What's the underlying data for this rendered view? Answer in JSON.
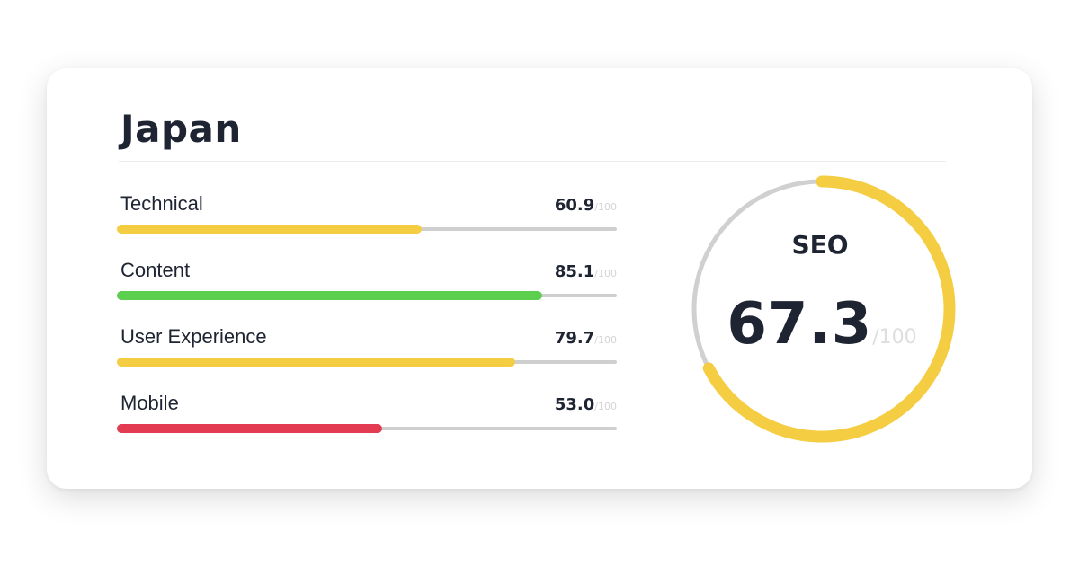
{
  "card": {
    "title": "Japan"
  },
  "metrics": [
    {
      "label": "Technical",
      "score": "60.9",
      "max": "/100",
      "value": 60.9,
      "color": "#f5cd42"
    },
    {
      "label": "Content",
      "score": "85.1",
      "max": "/100",
      "value": 85.1,
      "color": "#5ccf4f"
    },
    {
      "label": "User Experience",
      "score": "79.7",
      "max": "/100",
      "value": 79.7,
      "color": "#f5cd42"
    },
    {
      "label": "Mobile",
      "score": "53.0",
      "max": "/100",
      "value": 53.0,
      "color": "#e23b52"
    }
  ],
  "seo": {
    "label": "SEO",
    "score": "67.3",
    "max": "/100",
    "value": 67.3,
    "color": "#f5cd42",
    "track_color": "#d0d0d0"
  }
}
